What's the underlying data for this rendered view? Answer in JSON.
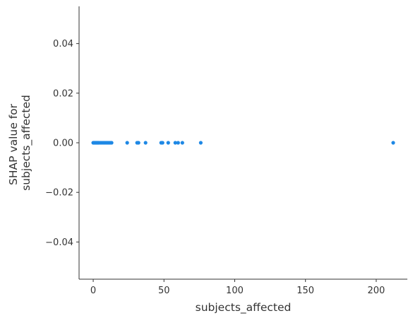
{
  "chart_data": {
    "type": "scatter",
    "title": "",
    "xlabel": "subjects_affected",
    "ylabel_lines": [
      "SHAP value for",
      "subjects_affected"
    ],
    "xlim": [
      -10,
      222
    ],
    "ylim": [
      -0.055,
      0.055
    ],
    "x_ticks": [
      0,
      50,
      100,
      150,
      200
    ],
    "x_tick_labels": [
      "0",
      "50",
      "100",
      "150",
      "200"
    ],
    "y_ticks": [
      0.04,
      0.02,
      0.0,
      -0.02,
      -0.04
    ],
    "y_tick_labels": [
      "0.04",
      "0.02",
      "0.00",
      "−0.02",
      "−0.04"
    ],
    "grid": false,
    "color": "#1e88e5",
    "points": [
      {
        "x": 0,
        "y": 0
      },
      {
        "x": 0.5,
        "y": 0
      },
      {
        "x": 1,
        "y": 0
      },
      {
        "x": 1.5,
        "y": 0
      },
      {
        "x": 2,
        "y": 0
      },
      {
        "x": 2.5,
        "y": 0
      },
      {
        "x": 3,
        "y": 0
      },
      {
        "x": 3.5,
        "y": 0
      },
      {
        "x": 4,
        "y": 0
      },
      {
        "x": 5,
        "y": 0
      },
      {
        "x": 6,
        "y": 0
      },
      {
        "x": 7,
        "y": 0
      },
      {
        "x": 8,
        "y": 0
      },
      {
        "x": 9,
        "y": 0
      },
      {
        "x": 10,
        "y": 0
      },
      {
        "x": 11,
        "y": 0
      },
      {
        "x": 12,
        "y": 0
      },
      {
        "x": 13,
        "y": 0
      },
      {
        "x": 24,
        "y": 0
      },
      {
        "x": 31,
        "y": 0
      },
      {
        "x": 32,
        "y": 0
      },
      {
        "x": 37,
        "y": 0
      },
      {
        "x": 48,
        "y": 0
      },
      {
        "x": 49,
        "y": 0
      },
      {
        "x": 53,
        "y": 0
      },
      {
        "x": 58,
        "y": 0
      },
      {
        "x": 60,
        "y": 0
      },
      {
        "x": 63,
        "y": 0
      },
      {
        "x": 76,
        "y": 0
      },
      {
        "x": 212,
        "y": 0
      }
    ]
  }
}
